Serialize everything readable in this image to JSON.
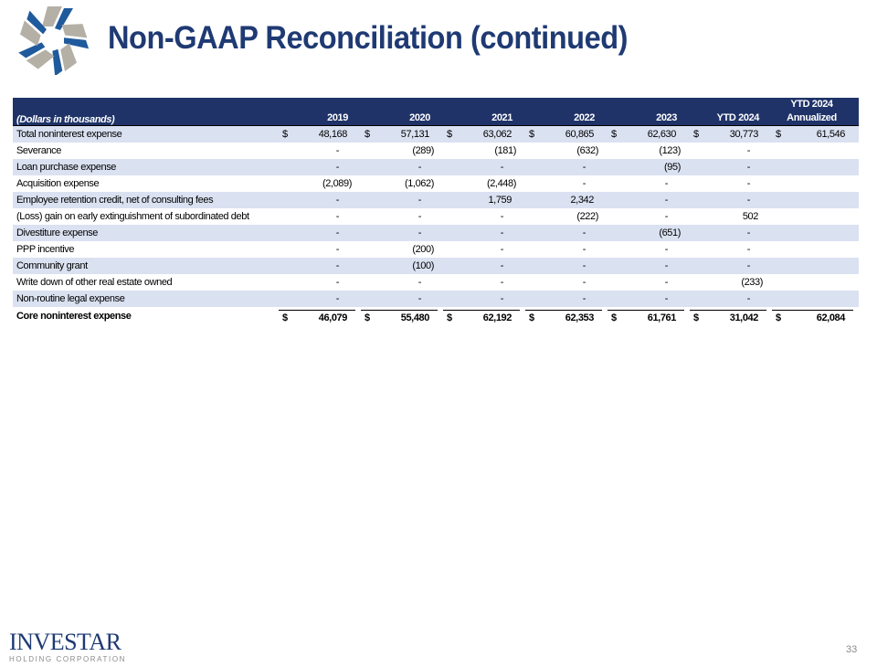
{
  "title": "Non-GAAP Reconciliation (continued)",
  "colors": {
    "title": "#1f3a73",
    "header_bg": "#1f3368",
    "row_stripe": "#dae1f1"
  },
  "table": {
    "units_label": "(Dollars in thousands)",
    "columns": [
      "2019",
      "2020",
      "2021",
      "2022",
      "2023",
      "YTD 2024",
      "YTD 2024 Annualized"
    ],
    "rows": [
      {
        "label": "Total noninterest expense",
        "dollar": true,
        "values": [
          "48,168",
          "57,131",
          "63,062",
          "60,865",
          "62,630",
          "30,773",
          "61,546"
        ]
      },
      {
        "label": "Severance",
        "values": [
          "-",
          "(289)",
          "(181)",
          "(632)",
          "(123)",
          "-",
          ""
        ]
      },
      {
        "label": "Loan purchase expense",
        "values": [
          "-",
          "-",
          "-",
          "-",
          "(95)",
          "-",
          ""
        ]
      },
      {
        "label": "Acquisition expense",
        "values": [
          "(2,089)",
          "(1,062)",
          "(2,448)",
          "-",
          "-",
          "-",
          ""
        ]
      },
      {
        "label": "Employee retention credit, net of consulting fees",
        "values": [
          "-",
          "-",
          "1,759",
          "2,342",
          "-",
          "-",
          ""
        ]
      },
      {
        "label": "(Loss) gain on early extinguishment of subordinated debt",
        "values": [
          "-",
          "-",
          "-",
          "(222)",
          "-",
          "502",
          ""
        ]
      },
      {
        "label": "Divestiture expense",
        "values": [
          "-",
          "-",
          "-",
          "-",
          "(651)",
          "-",
          ""
        ]
      },
      {
        "label": "PPP incentive",
        "values": [
          "-",
          "(200)",
          "-",
          "-",
          "-",
          "-",
          ""
        ]
      },
      {
        "label": "Community grant",
        "values": [
          "-",
          "(100)",
          "-",
          "-",
          "-",
          "-",
          ""
        ]
      },
      {
        "label": "Write down of other real estate owned",
        "values": [
          "-",
          "-",
          "-",
          "-",
          "-",
          "(233)",
          ""
        ]
      },
      {
        "label": "Non-routine legal expense",
        "values": [
          "-",
          "-",
          "-",
          "-",
          "-",
          "-",
          ""
        ]
      }
    ],
    "total": {
      "label": "Core noninterest expense",
      "dollar": true,
      "values": [
        "46,079",
        "55,480",
        "62,192",
        "62,353",
        "61,761",
        "31,042",
        "62,084"
      ]
    },
    "currency_symbol": "$"
  },
  "footer": {
    "brand_name": "INVESTAR",
    "brand_sub": "HOLDING CORPORATION",
    "page_number": "33"
  }
}
